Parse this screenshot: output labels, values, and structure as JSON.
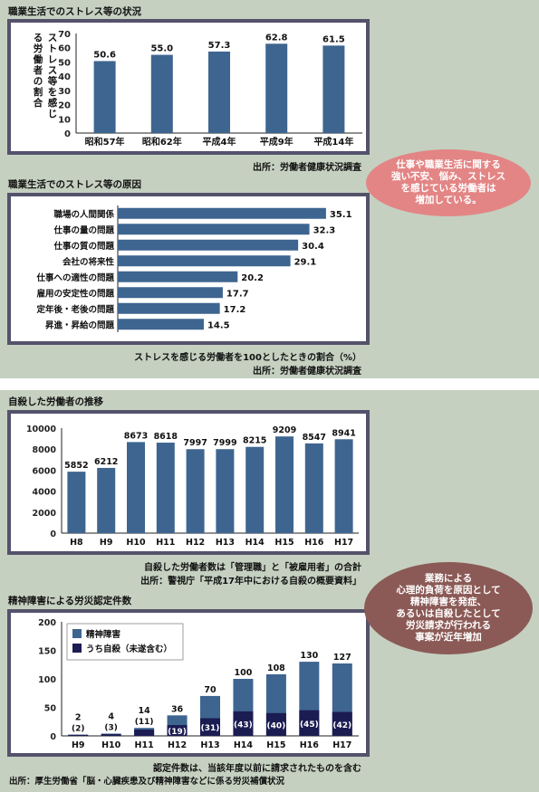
{
  "section1": {
    "title": "職業生活でのストレス等の状況",
    "source": "出所：労働者健康状況調査",
    "chart_data": {
      "type": "bar",
      "title": "職業生活でのストレス等の状況",
      "ylabel": "ストレス等を感じる労働者の割合",
      "categories": [
        "昭和57年",
        "昭和62年",
        "平成4年",
        "平成9年",
        "平成14年"
      ],
      "values": [
        50.6,
        55.0,
        57.3,
        62.8,
        61.5
      ],
      "value_labels": [
        "50.6",
        "55.0",
        "57.3",
        "62.8",
        "61.5"
      ],
      "ylim": [
        0,
        70
      ],
      "yticks": [
        0,
        10,
        20,
        30,
        40,
        50,
        60,
        70
      ],
      "bar_color": "#3e6590"
    }
  },
  "section2": {
    "title": "職業生活でのストレス等の原因",
    "note": "ストレスを感じる労働者を100としたときの割合（%）",
    "source": "出所：労働者健康状況調査",
    "chart_data": {
      "type": "bar",
      "orientation": "horizontal",
      "categories": [
        "職場の人間関係",
        "仕事の量の問題",
        "仕事の質の問題",
        "会社の将来性",
        "仕事への適性の問題",
        "雇用の安定性の問題",
        "定年後・老後の問題",
        "昇進・昇給の問題"
      ],
      "values": [
        35.1,
        32.3,
        30.4,
        29.1,
        20.2,
        17.7,
        17.2,
        14.5
      ],
      "value_labels": [
        "35.1",
        "32.3",
        "30.4",
        "29.1",
        "20.2",
        "17.7",
        "17.2",
        "14.5"
      ],
      "xlim": [
        0,
        40
      ],
      "bar_color": "#3e6590"
    }
  },
  "callout1": {
    "text": "仕事や職業生活に関する\n強い不安、悩み、ストレス\nを感じている労働者は\n増加している。",
    "color": "#e38585"
  },
  "section3": {
    "title": "自殺した労働者の推移",
    "note": "自殺した労働者数は「管理職」と「被雇用者」の合計",
    "source": "出所：警視庁「平成17年中における自殺の概要資料」",
    "chart_data": {
      "type": "bar",
      "categories": [
        "H8",
        "H9",
        "H10",
        "H11",
        "H12",
        "H13",
        "H14",
        "H15",
        "H16",
        "H17"
      ],
      "values": [
        5852,
        6212,
        8673,
        8618,
        7997,
        7999,
        8215,
        9209,
        8547,
        8941
      ],
      "value_labels": [
        "5852",
        "6212",
        "8673",
        "8618",
        "7997",
        "7999",
        "8215",
        "9209",
        "8547",
        "8941"
      ],
      "ylim": [
        0,
        10000
      ],
      "yticks": [
        0,
        2000,
        4000,
        6000,
        8000,
        10000
      ],
      "bar_color": "#3e6590"
    }
  },
  "callout2": {
    "text": "業務による\n心理的負荷を原因として\n精神障害を発症、\nあるいは自殺したとして\n労災請求が行われる\n事案が近年増加",
    "color": "#8b5a56"
  },
  "section4": {
    "title": "精神障害による労災認定件数",
    "note": "認定件数は、当該年度以前に請求されたものを含む",
    "source": "出所：厚生労働省「脳・心臓疾患及び精神障害などに係る労災補償状況",
    "chart_data": {
      "type": "bar",
      "categories": [
        "H9",
        "H10",
        "H11",
        "H12",
        "H13",
        "H14",
        "H15",
        "H16",
        "H17"
      ],
      "series": [
        {
          "name": "精神障害",
          "values": [
            2,
            4,
            14,
            36,
            70,
            100,
            108,
            130,
            127
          ],
          "color": "#3e6590"
        },
        {
          "name": "うち自殺（未遂含む）",
          "values": [
            2,
            3,
            11,
            19,
            31,
            43,
            40,
            45,
            42
          ],
          "color": "#1b1c52"
        }
      ],
      "total_labels": [
        "2",
        "4",
        "14",
        "36",
        "70",
        "100",
        "108",
        "130",
        "127"
      ],
      "sub_labels": [
        "(2)",
        "(3)",
        "(11)",
        "(19)",
        "(31)",
        "(43)",
        "(40)",
        "(45)",
        "(42)"
      ],
      "ylim": [
        0,
        200
      ],
      "yticks": [
        0,
        50,
        100,
        150,
        200
      ]
    }
  }
}
